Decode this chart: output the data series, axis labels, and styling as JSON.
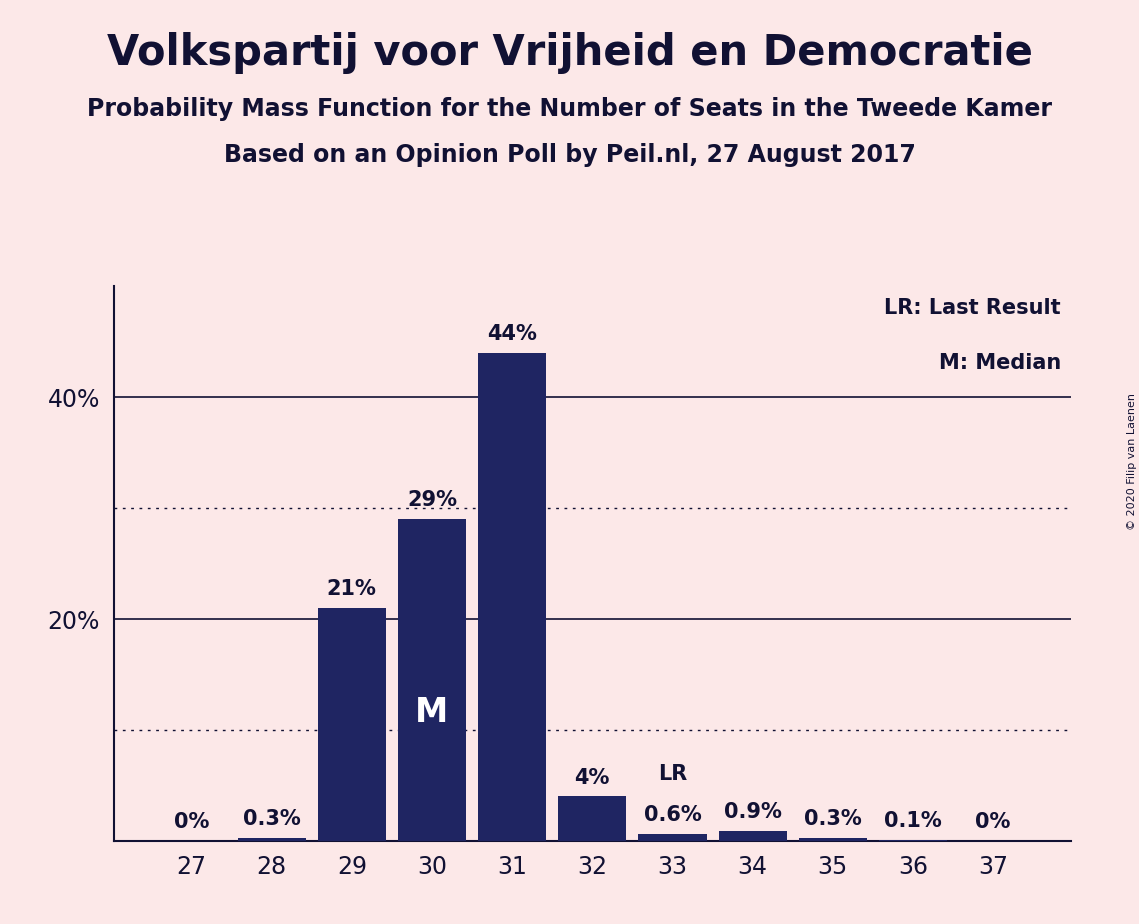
{
  "title": "Volkspartij voor Vrijheid en Democratie",
  "subtitle1": "Probability Mass Function for the Number of Seats in the Tweede Kamer",
  "subtitle2": "Based on an Opinion Poll by Peil.nl, 27 August 2017",
  "copyright": "© 2020 Filip van Laenen",
  "legend_lr": "LR: Last Result",
  "legend_m": "M: Median",
  "categories": [
    27,
    28,
    29,
    30,
    31,
    32,
    33,
    34,
    35,
    36,
    37
  ],
  "values": [
    0.0,
    0.3,
    21.0,
    29.0,
    44.0,
    4.0,
    0.6,
    0.9,
    0.3,
    0.1,
    0.0
  ],
  "bar_labels": [
    "0%",
    "0.3%",
    "21%",
    "29%",
    "44%",
    "4%",
    "0.6%",
    "0.9%",
    "0.3%",
    "0.1%",
    "0%"
  ],
  "bar_color": "#1f2562",
  "background_color": "#fce8e8",
  "text_color": "#111133",
  "median_bar_idx": 3,
  "median_label": "M",
  "lr_bar_idx": 6,
  "lr_label": "LR",
  "ylim": [
    0,
    50
  ],
  "yticks_solid": [
    20,
    40
  ],
  "yticks_dotted": [
    10,
    30
  ],
  "title_fontsize": 30,
  "subtitle_fontsize": 17,
  "label_fontsize": 15,
  "tick_fontsize": 17,
  "legend_fontsize": 15,
  "median_fontsize": 24,
  "lr_fontsize": 15
}
